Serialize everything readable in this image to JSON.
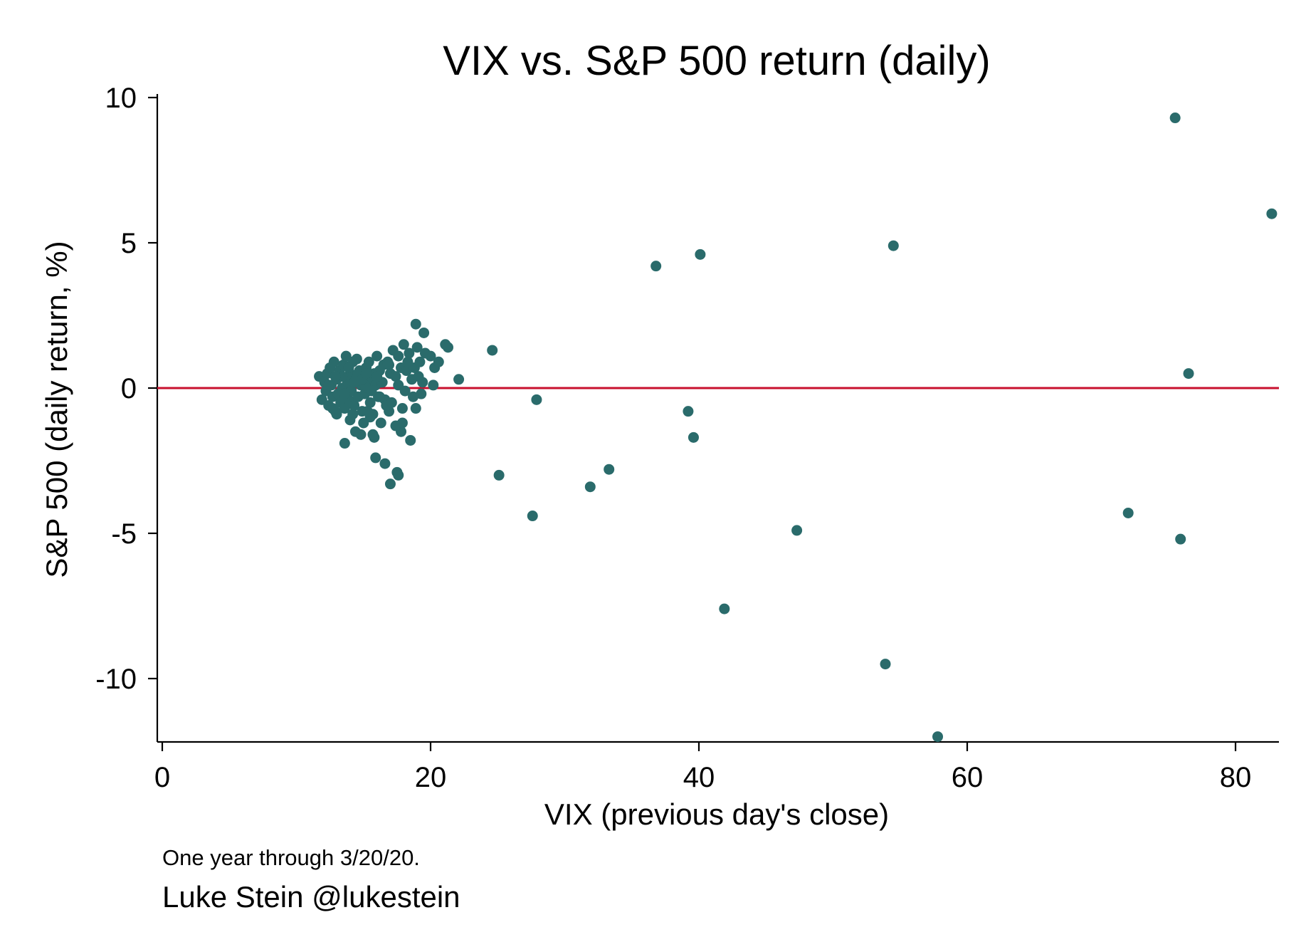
{
  "chart_data": {
    "type": "scatter",
    "title": "VIX vs. S&P 500 return (daily)",
    "xlabel": "VIX (previous day's close)",
    "ylabel": "S&P 500 (daily return, %)",
    "xlim": [
      0,
      83
    ],
    "ylim": [
      -12,
      10
    ],
    "xticks": [
      0,
      20,
      40,
      60,
      80
    ],
    "yticks": [
      10,
      5,
      0,
      -5,
      -10
    ],
    "xtick_labels": [
      "0",
      "20",
      "40",
      "60",
      "80"
    ],
    "ytick_labels": [
      "10",
      "5",
      "0",
      "-5",
      "-10"
    ],
    "reference_line": {
      "y": 0,
      "color": "#c8102e"
    },
    "marker_color": "#2a6b6b",
    "grid": false,
    "legend": "none",
    "points": [
      [
        11.7,
        0.4
      ],
      [
        11.9,
        -0.4
      ],
      [
        12.1,
        0.2
      ],
      [
        12.2,
        -0.1
      ],
      [
        12.3,
        0.5
      ],
      [
        12.4,
        -0.6
      ],
      [
        12.5,
        0.7
      ],
      [
        12.6,
        0.1
      ],
      [
        12.7,
        -0.3
      ],
      [
        12.8,
        0.9
      ],
      [
        12.9,
        -0.8
      ],
      [
        13.0,
        0.3
      ],
      [
        13.1,
        -0.2
      ],
      [
        13.2,
        0.6
      ],
      [
        13.3,
        -0.5
      ],
      [
        13.4,
        0.0
      ],
      [
        13.5,
        0.8
      ],
      [
        13.6,
        -0.7
      ],
      [
        13.7,
        1.1
      ],
      [
        13.8,
        0.2
      ],
      [
        13.9,
        -0.4
      ],
      [
        14.0,
        0.5
      ],
      [
        14.1,
        -0.1
      ],
      [
        14.2,
        0.9
      ],
      [
        14.3,
        -0.6
      ],
      [
        14.4,
        0.3
      ],
      [
        14.5,
        1.0
      ],
      [
        14.6,
        -0.3
      ],
      [
        14.7,
        0.6
      ],
      [
        14.8,
        0.1
      ],
      [
        14.9,
        -0.8
      ],
      [
        15.0,
        0.4
      ],
      [
        15.1,
        -0.2
      ],
      [
        15.2,
        0.7
      ],
      [
        15.3,
        0.0
      ],
      [
        15.4,
        0.9
      ],
      [
        15.5,
        -0.5
      ],
      [
        15.6,
        0.3
      ],
      [
        15.7,
        -0.9
      ],
      [
        15.8,
        0.5
      ],
      [
        15.9,
        0.1
      ],
      [
        16.0,
        1.1
      ],
      [
        16.1,
        -0.3
      ],
      [
        16.2,
        0.6
      ],
      [
        16.3,
        0.2
      ],
      [
        16.5,
        0.8
      ],
      [
        16.6,
        -0.4
      ],
      [
        16.8,
        0.9
      ],
      [
        17.0,
        0.5
      ],
      [
        17.2,
        1.3
      ],
      [
        17.4,
        0.4
      ],
      [
        17.6,
        1.1
      ],
      [
        17.8,
        0.7
      ],
      [
        18.0,
        1.5
      ],
      [
        18.2,
        0.6
      ],
      [
        18.4,
        1.2
      ],
      [
        18.6,
        0.3
      ],
      [
        18.8,
        0.7
      ],
      [
        19.0,
        1.4
      ],
      [
        19.2,
        0.9
      ],
      [
        19.4,
        0.2
      ],
      [
        19.6,
        1.2
      ],
      [
        20.0,
        1.1
      ],
      [
        20.3,
        0.7
      ],
      [
        20.6,
        0.9
      ],
      [
        21.1,
        1.5
      ],
      [
        21.3,
        1.4
      ],
      [
        22.1,
        0.3
      ],
      [
        24.6,
        1.3
      ],
      [
        18.9,
        2.2
      ],
      [
        19.5,
        1.9
      ],
      [
        19.1,
        0.4
      ],
      [
        20.2,
        0.1
      ],
      [
        19.3,
        -0.2
      ],
      [
        18.7,
        -0.3
      ],
      [
        18.9,
        -0.7
      ],
      [
        17.9,
        -0.7
      ],
      [
        18.5,
        -1.8
      ],
      [
        17.8,
        -1.5
      ],
      [
        17.4,
        -1.3
      ],
      [
        17.9,
        -1.2
      ],
      [
        16.9,
        -0.8
      ],
      [
        16.3,
        -1.2
      ],
      [
        15.8,
        -1.7
      ],
      [
        15.7,
        -1.6
      ],
      [
        15.5,
        -1.0
      ],
      [
        15.0,
        -1.2
      ],
      [
        14.8,
        -1.6
      ],
      [
        14.4,
        -1.5
      ],
      [
        14.0,
        -1.1
      ],
      [
        13.6,
        -1.9
      ],
      [
        15.9,
        -2.4
      ],
      [
        16.6,
        -2.6
      ],
      [
        17.5,
        -2.9
      ],
      [
        17.6,
        -3.0
      ],
      [
        17.0,
        -3.3
      ],
      [
        16.2,
        -0.3
      ],
      [
        16.7,
        -0.6
      ],
      [
        17.1,
        -0.5
      ],
      [
        13.0,
        -0.9
      ],
      [
        12.7,
        -0.7
      ],
      [
        14.2,
        -0.9
      ],
      [
        15.3,
        -0.8
      ],
      [
        16.4,
        0.2
      ],
      [
        16.9,
        0.8
      ],
      [
        17.6,
        0.1
      ],
      [
        18.1,
        -0.1
      ],
      [
        18.3,
        0.9
      ],
      [
        13.4,
        0.4
      ],
      [
        13.9,
        0.7
      ],
      [
        14.6,
        0.5
      ],
      [
        15.1,
        0.1
      ],
      [
        12.4,
        0.1
      ],
      [
        12.9,
        0.4
      ],
      [
        13.6,
        -0.2
      ],
      [
        14.3,
        0.2
      ],
      [
        14.9,
        0.3
      ],
      [
        15.6,
        -0.1
      ],
      [
        16.0,
        0.4
      ],
      [
        15.2,
        0.5
      ],
      [
        25.1,
        -3.0
      ],
      [
        27.6,
        -4.4
      ],
      [
        27.9,
        -0.4
      ],
      [
        31.9,
        -3.4
      ],
      [
        33.3,
        -2.8
      ],
      [
        36.8,
        4.2
      ],
      [
        39.2,
        -0.8
      ],
      [
        39.6,
        -1.7
      ],
      [
        40.1,
        4.6
      ],
      [
        41.9,
        -7.6
      ],
      [
        47.3,
        -4.9
      ],
      [
        53.9,
        -9.5
      ],
      [
        54.5,
        4.9
      ],
      [
        57.8,
        -12.0
      ],
      [
        72.0,
        -4.3
      ],
      [
        75.5,
        9.3
      ],
      [
        75.9,
        -5.2
      ],
      [
        76.5,
        0.5
      ],
      [
        82.7,
        6.0
      ]
    ],
    "footnote": "One year through 3/20/20.",
    "credit": "Luke Stein @lukestein"
  }
}
